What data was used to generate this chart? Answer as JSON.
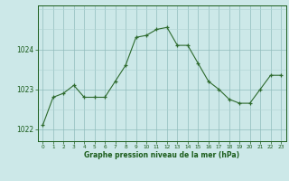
{
  "x": [
    0,
    1,
    2,
    3,
    4,
    5,
    6,
    7,
    8,
    9,
    10,
    11,
    12,
    13,
    14,
    15,
    16,
    17,
    18,
    19,
    20,
    21,
    22,
    23
  ],
  "y": [
    1022.1,
    1022.8,
    1022.9,
    1023.1,
    1022.8,
    1022.8,
    1022.8,
    1023.2,
    1023.6,
    1024.3,
    1024.35,
    1024.5,
    1024.55,
    1024.1,
    1024.1,
    1023.65,
    1023.2,
    1023.0,
    1022.75,
    1022.65,
    1022.65,
    1023.0,
    1023.35,
    1023.35
  ],
  "line_color": "#2d6a2d",
  "marker_color": "#2d6a2d",
  "bg_color": "#cce8e8",
  "grid_color_major": "#90bcbc",
  "grid_color_minor": "#b0d4d4",
  "xlabel": "Graphe pression niveau de la mer (hPa)",
  "xlabel_color": "#1a5c1a",
  "tick_color": "#1a5c1a",
  "ylim": [
    1021.7,
    1025.1
  ],
  "yticks": [
    1022,
    1023,
    1024
  ],
  "xlim": [
    -0.5,
    23.5
  ],
  "xticks": [
    0,
    1,
    2,
    3,
    4,
    5,
    6,
    7,
    8,
    9,
    10,
    11,
    12,
    13,
    14,
    15,
    16,
    17,
    18,
    19,
    20,
    21,
    22,
    23
  ]
}
